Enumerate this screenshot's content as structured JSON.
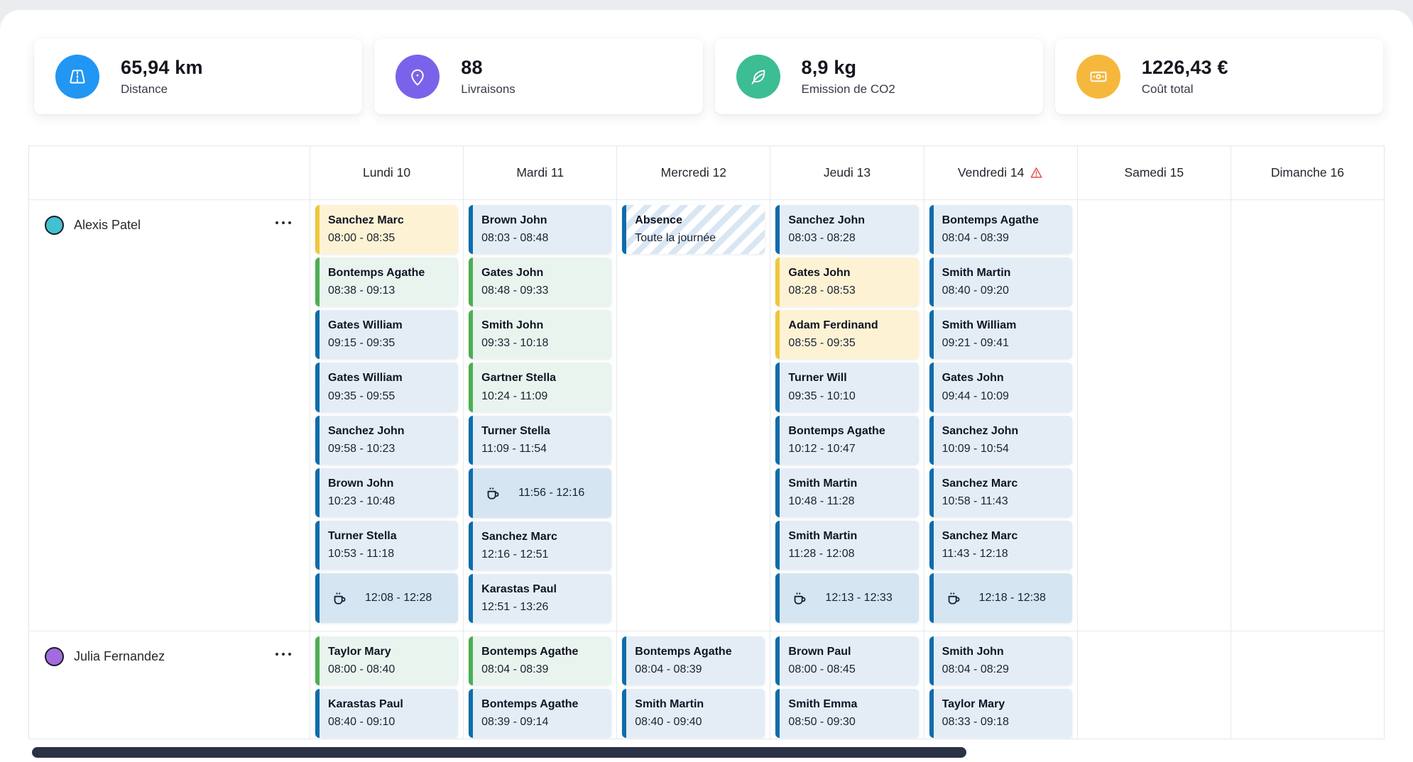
{
  "kpis": [
    {
      "id": "distance",
      "icon": "road-icon",
      "color": "#2196f3",
      "value": "65,94 km",
      "label": "Distance"
    },
    {
      "id": "deliveries",
      "icon": "location-pin-icon",
      "color": "#7a63ea",
      "value": "88",
      "label": "Livraisons"
    },
    {
      "id": "co2",
      "icon": "leaf-icon",
      "color": "#3dbd94",
      "value": "8,9 kg",
      "label": "Emission de CO2"
    },
    {
      "id": "cost",
      "icon": "banknote-icon",
      "color": "#f5b83d",
      "value": "1226,43 €",
      "label": "Coût total"
    }
  ],
  "icons": {
    "break": "coffee-cup-icon",
    "warning": "warning-triangle-icon",
    "row_menu": "ellipsis-icon"
  },
  "palette": {
    "blue": {
      "bg": "#e4edf6",
      "border": "#0e6cab"
    },
    "green": {
      "bg": "#eaf4ee",
      "border": "#4cae52"
    },
    "yellow": {
      "bg": "#fdf3d4",
      "border": "#eec73e"
    },
    "break": {
      "bg": "#d6e5f2",
      "border": "#0e6cab"
    },
    "absence": {
      "bg": "#ffffff",
      "stripe": "#d9e6f3",
      "border": "#0e6cab"
    },
    "warning": "#e05c5c",
    "scrollbar": "#2b3246"
  },
  "calendar": {
    "days": [
      {
        "label": "Lundi 10",
        "warning": false
      },
      {
        "label": "Mardi 11",
        "warning": false
      },
      {
        "label": "Mercredi 12",
        "warning": false
      },
      {
        "label": "Jeudi 13",
        "warning": false
      },
      {
        "label": "Vendredi 14",
        "warning": true
      },
      {
        "label": "Samedi 15",
        "warning": false
      },
      {
        "label": "Dimanche 16",
        "warning": false
      }
    ],
    "rows": [
      {
        "name": "Alexis Patel",
        "avatar_color": "#41c1d1",
        "days": [
          [
            {
              "type": "visit",
              "color": "yellow",
              "title": "Sanchez Marc",
              "time": "08:00 - 08:35"
            },
            {
              "type": "visit",
              "color": "green",
              "title": "Bontemps Agathe",
              "time": "08:38 - 09:13"
            },
            {
              "type": "visit",
              "color": "blue",
              "title": "Gates William",
              "time": "09:15 - 09:35"
            },
            {
              "type": "visit",
              "color": "blue",
              "title": "Gates William",
              "time": "09:35 - 09:55"
            },
            {
              "type": "visit",
              "color": "blue",
              "title": "Sanchez John",
              "time": "09:58 - 10:23"
            },
            {
              "type": "visit",
              "color": "blue",
              "title": "Brown John",
              "time": "10:23 - 10:48"
            },
            {
              "type": "visit",
              "color": "blue",
              "title": "Turner Stella",
              "time": "10:53 - 11:18"
            },
            {
              "type": "break",
              "time": "12:08 - 12:28"
            }
          ],
          [
            {
              "type": "visit",
              "color": "blue",
              "title": "Brown John",
              "time": "08:03 - 08:48"
            },
            {
              "type": "visit",
              "color": "green",
              "title": "Gates John",
              "time": "08:48 - 09:33"
            },
            {
              "type": "visit",
              "color": "green",
              "title": "Smith John",
              "time": "09:33 - 10:18"
            },
            {
              "type": "visit",
              "color": "green",
              "title": "Gartner Stella",
              "time": "10:24 - 11:09"
            },
            {
              "type": "visit",
              "color": "blue",
              "title": "Turner Stella",
              "time": "11:09 - 11:54"
            },
            {
              "type": "break",
              "time": "11:56 - 12:16"
            },
            {
              "type": "visit",
              "color": "blue",
              "title": "Sanchez Marc",
              "time": "12:16 - 12:51"
            },
            {
              "type": "visit",
              "color": "blue",
              "title": "Karastas Paul",
              "time": "12:51 - 13:26"
            }
          ],
          [
            {
              "type": "absence",
              "title": "Absence",
              "subtitle": "Toute la journée"
            }
          ],
          [
            {
              "type": "visit",
              "color": "blue",
              "title": "Sanchez John",
              "time": "08:03 - 08:28"
            },
            {
              "type": "visit",
              "color": "yellow",
              "title": "Gates John",
              "time": "08:28 - 08:53"
            },
            {
              "type": "visit",
              "color": "yellow",
              "title": "Adam Ferdinand",
              "time": "08:55 - 09:35"
            },
            {
              "type": "visit",
              "color": "blue",
              "title": "Turner Will",
              "time": "09:35 - 10:10"
            },
            {
              "type": "visit",
              "color": "blue",
              "title": "Bontemps Agathe",
              "time": "10:12 - 10:47"
            },
            {
              "type": "visit",
              "color": "blue",
              "title": "Smith Martin",
              "time": "10:48 - 11:28"
            },
            {
              "type": "visit",
              "color": "blue",
              "title": "Smith Martin",
              "time": "11:28 - 12:08"
            },
            {
              "type": "break",
              "time": "12:13 - 12:33"
            }
          ],
          [
            {
              "type": "visit",
              "color": "blue",
              "title": "Bontemps Agathe",
              "time": "08:04 - 08:39"
            },
            {
              "type": "visit",
              "color": "blue",
              "title": "Smith Martin",
              "time": "08:40 - 09:20"
            },
            {
              "type": "visit",
              "color": "blue",
              "title": "Smith William",
              "time": "09:21 - 09:41"
            },
            {
              "type": "visit",
              "color": "blue",
              "title": "Gates John",
              "time": "09:44 - 10:09"
            },
            {
              "type": "visit",
              "color": "blue",
              "title": "Sanchez John",
              "time": "10:09 - 10:54"
            },
            {
              "type": "visit",
              "color": "blue",
              "title": "Sanchez Marc",
              "time": "10:58 - 11:43"
            },
            {
              "type": "visit",
              "color": "blue",
              "title": "Sanchez Marc",
              "time": "11:43 - 12:18"
            },
            {
              "type": "break",
              "time": "12:18 - 12:38"
            }
          ],
          [],
          []
        ]
      },
      {
        "name": "Julia Fernandez",
        "avatar_color": "#a46be0",
        "days": [
          [
            {
              "type": "visit",
              "color": "green",
              "title": "Taylor Mary",
              "time": "08:00 - 08:40"
            },
            {
              "type": "visit",
              "color": "blue",
              "title": "Karastas Paul",
              "time": "08:40 - 09:10"
            }
          ],
          [
            {
              "type": "visit",
              "color": "green",
              "title": "Bontemps Agathe",
              "time": "08:04 - 08:39"
            },
            {
              "type": "visit",
              "color": "blue",
              "title": "Bontemps Agathe",
              "time": "08:39 - 09:14"
            }
          ],
          [
            {
              "type": "visit",
              "color": "blue",
              "title": "Bontemps Agathe",
              "time": "08:04 - 08:39"
            },
            {
              "type": "visit",
              "color": "blue",
              "title": "Smith Martin",
              "time": "08:40 - 09:40"
            }
          ],
          [
            {
              "type": "visit",
              "color": "blue",
              "title": "Brown Paul",
              "time": "08:00 - 08:45"
            },
            {
              "type": "visit",
              "color": "blue",
              "title": "Smith Emma",
              "time": "08:50 - 09:30"
            }
          ],
          [
            {
              "type": "visit",
              "color": "blue",
              "title": "Smith John",
              "time": "08:04 - 08:29"
            },
            {
              "type": "visit",
              "color": "blue",
              "title": "Taylor Mary",
              "time": "08:33 - 09:18"
            }
          ],
          [],
          []
        ]
      }
    ]
  }
}
